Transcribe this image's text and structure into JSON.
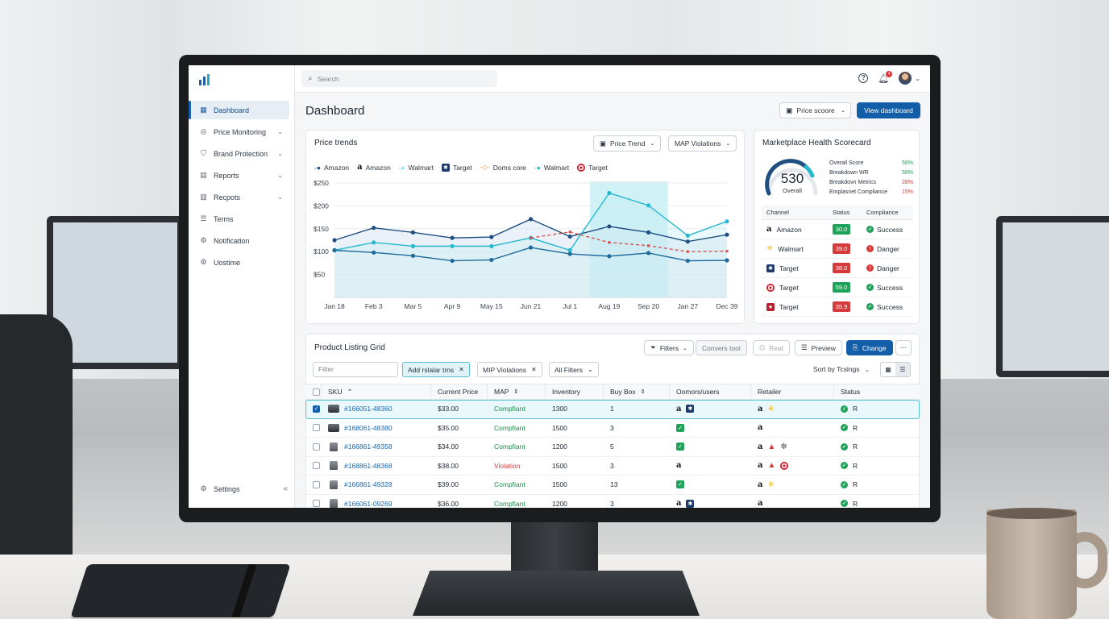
{
  "topbar": {
    "search_placeholder": "Search",
    "notification_count": "4"
  },
  "sidebar": {
    "items": [
      {
        "label": "Dashboard",
        "icon": "grid-icon"
      },
      {
        "label": "Price Monitoring",
        "icon": "gauge-icon"
      },
      {
        "label": "Brand Protection",
        "icon": "shield-icon"
      },
      {
        "label": "Reports",
        "icon": "document-icon"
      },
      {
        "label": "Recpots",
        "icon": "bar-chart-icon"
      },
      {
        "label": "Terms",
        "icon": "list-icon"
      },
      {
        "label": "Notification",
        "icon": "gear-icon"
      },
      {
        "label": "Uostime",
        "icon": "gear-icon"
      }
    ],
    "settings_label": "Settings"
  },
  "header": {
    "title": "Dashboard",
    "price_score_label": "Price scoore",
    "view_dashboard_label": "View dashboard"
  },
  "price_trends": {
    "title": "Price trends",
    "price_trend_btn": "Price Trend",
    "map_violations_btn": "MAP Violations",
    "legend": [
      "Amazon",
      "Amazon",
      "Walmart",
      "Target",
      "Doms core",
      "Walmart",
      "Target"
    ]
  },
  "chart_data": {
    "type": "line",
    "x": [
      "Jan 18",
      "Feb 3",
      "Mar 5",
      "Apr 9",
      "May 15",
      "Jun 21",
      "Jul 1",
      "Aug 19",
      "Sep 20",
      "Jan 27",
      "Dec 39"
    ],
    "ylim": [
      0,
      250
    ],
    "yticks": [
      "$250",
      "$200",
      "$150",
      "$100",
      "$50"
    ],
    "highlight_range": [
      "Aug 19",
      "Sep 20"
    ],
    "series": [
      {
        "name": "Amazon",
        "color": "#1e4f80",
        "values": [
          125,
          152,
          142,
          130,
          132,
          171,
          133,
          155,
          142,
          122,
          137
        ]
      },
      {
        "name": "Walmart",
        "color": "#26b8cf",
        "values": [
          103,
          120,
          112,
          112,
          112,
          130,
          103,
          228,
          201,
          135,
          166
        ]
      },
      {
        "name": "Target",
        "color": "#1e6a9a",
        "values": [
          103,
          98,
          91,
          80,
          82,
          109,
          95,
          90,
          97,
          80,
          81
        ]
      },
      {
        "name": "Doms core",
        "color": "#d9534f",
        "dashed": true,
        "values": [
          null,
          null,
          null,
          null,
          null,
          130,
          143,
          120,
          113,
          100,
          101
        ]
      }
    ]
  },
  "health": {
    "title": "Marketplace Health Scorecard",
    "score": "530",
    "score_label": "Overall",
    "metrics": [
      {
        "label": "Overall Score",
        "value": "58%",
        "color": "#1fa35a"
      },
      {
        "label": "Breakdown WR",
        "value": "58%",
        "color": "#1fa35a"
      },
      {
        "label": "Breakdovn Metrics",
        "value": "28%",
        "color": "#d63a3a"
      },
      {
        "label": "Emplasnet Compliance",
        "value": "15%",
        "color": "#d63a3a"
      }
    ],
    "columns": [
      "Channel",
      "Status",
      "Compliance"
    ],
    "rows": [
      {
        "channel": "Amazon",
        "icon": "amazon-icon",
        "status": "30.0",
        "tone": "g",
        "compliance": "Success"
      },
      {
        "channel": "Walmart",
        "icon": "walmart-icon",
        "status": "39.0",
        "tone": "r",
        "compliance": "Danger"
      },
      {
        "channel": "Target",
        "icon": "target-square-icon",
        "status": "38.0",
        "tone": "r",
        "compliance": "Danger"
      },
      {
        "channel": "Target",
        "icon": "target-icon",
        "status": "59.0",
        "tone": "g",
        "compliance": "Success"
      },
      {
        "channel": "Target",
        "icon": "target-star-icon",
        "status": "35.9",
        "tone": "r",
        "compliance": "Success"
      }
    ]
  },
  "grid": {
    "title": "Product Listing Grid",
    "filters_btn": "Filters",
    "convers_btn": "Convers tooi",
    "reat_btn": "Reat",
    "preview_btn": "Preview",
    "change_btn": "Change",
    "filter_placeholder": "Filter",
    "chips": [
      "Add rslalar trns",
      "MIP Violations",
      "All Filters"
    ],
    "sort_label": "Sort by Tcsings",
    "columns": [
      "SKU",
      "Current Price",
      "MAP",
      "Inventory",
      "Buy Box",
      "Oomors/users",
      "Retailer",
      "Status"
    ],
    "rows": [
      {
        "sku": "#166051-48360",
        "price": "$33.00",
        "map": "Compfiant",
        "inventory": "1300",
        "buybox": "1",
        "status": "R"
      },
      {
        "sku": "#168061-48380",
        "price": "$35.00",
        "map": "Compfiant",
        "inventory": "1500",
        "buybox": "3",
        "status": "R"
      },
      {
        "sku": "#166861-49358",
        "price": "$34.00",
        "map": "Compfiant",
        "inventory": "1200",
        "buybox": "5",
        "status": "R"
      },
      {
        "sku": "#168861-48368",
        "price": "$38.00",
        "map": "Violation",
        "inventory": "1500",
        "buybox": "3",
        "status": "R"
      },
      {
        "sku": "#166861-49328",
        "price": "$39.00",
        "map": "Compfiant",
        "inventory": "1500",
        "buybox": "13",
        "status": "R"
      },
      {
        "sku": "#166061-09269",
        "price": "$36.00",
        "map": "Compfiant",
        "inventory": "1200",
        "buybox": "3",
        "status": "R"
      }
    ]
  }
}
